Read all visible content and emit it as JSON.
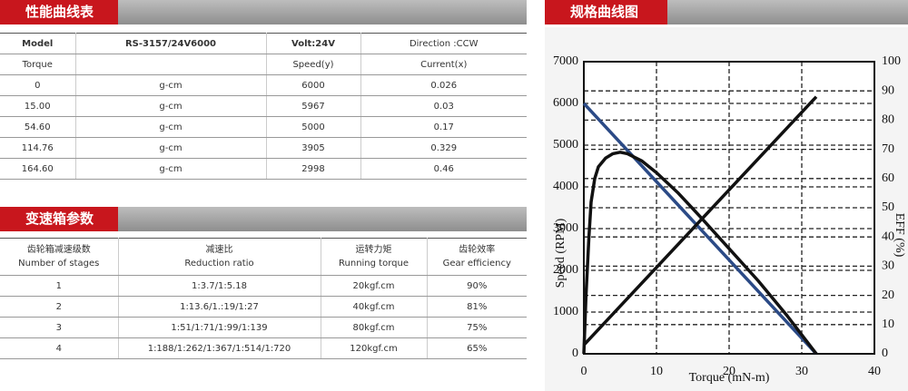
{
  "performance": {
    "title": "性能曲线表",
    "header": [
      "Model",
      "RS-3157/24V6000",
      "Volt:24V",
      "Direction :CCW"
    ],
    "subheader": [
      "Torque",
      "Speed(y)",
      "Current(x)"
    ],
    "rows": [
      [
        "0",
        "g-cm",
        "6000",
        "0.026"
      ],
      [
        "15.00",
        "g-cm",
        "5967",
        "0.03"
      ],
      [
        "54.60",
        "g-cm",
        "5000",
        "0.17"
      ],
      [
        "114.76",
        "g-cm",
        "3905",
        "0.329"
      ],
      [
        "164.60",
        "g-cm",
        "2998",
        "0.46"
      ]
    ]
  },
  "gearbox": {
    "title": "变速箱参数",
    "header": [
      [
        "齿轮箱减速级数",
        "Number of stages"
      ],
      [
        "减速比",
        "Reduction ratio"
      ],
      [
        "运转力矩",
        "Running torque"
      ],
      [
        "齿轮效率",
        "Gear efficiency"
      ]
    ],
    "rows": [
      [
        "1",
        "1:3.7/1:5.18",
        "20kgf.cm",
        "90%"
      ],
      [
        "2",
        "1:13.6/1.:19/1:27",
        "40kgf.cm",
        "81%"
      ],
      [
        "3",
        "1:51/1:71/1:99/1:139",
        "80kgf.cm",
        "75%"
      ],
      [
        "4",
        "1:188/1:262/1:367/1:514/1:720",
        "120kgf.cm",
        "65%"
      ]
    ]
  },
  "chart_data": {
    "type": "line",
    "title": "规格曲线图",
    "x_label": "Torque (mN-m)",
    "y_label": "Speed (RPM)",
    "y2_label": "EFF (%)",
    "xlim": [
      0,
      40
    ],
    "xticks": [
      0,
      10,
      20,
      30,
      40
    ],
    "ylim": [
      0,
      7000
    ],
    "yticks": [
      0,
      1000,
      2000,
      3000,
      4000,
      5000,
      6000,
      7000
    ],
    "y2lim": [
      0,
      100
    ],
    "y2ticks": [
      0,
      10,
      20,
      30,
      40,
      50,
      60,
      70,
      80,
      90,
      100
    ],
    "grid": true,
    "series": [
      {
        "color": "#2b4a86",
        "x": [
          0,
          32
        ],
        "values": [
          6000,
          0
        ]
      },
      {
        "color": "#111111",
        "axis": "y2",
        "x": [
          0,
          0.3,
          0.7,
          1,
          1.5,
          2,
          3,
          4,
          5,
          6,
          8,
          10,
          13,
          16,
          20,
          24,
          28,
          32
        ],
        "values": [
          0,
          20,
          40,
          52,
          60,
          64,
          67,
          68.5,
          69,
          68.5,
          66,
          62,
          55,
          47,
          36,
          25,
          13,
          0
        ]
      },
      {
        "color": "#111111",
        "axis": "y2",
        "x": [
          0,
          32
        ],
        "values": [
          3,
          88
        ]
      }
    ]
  }
}
